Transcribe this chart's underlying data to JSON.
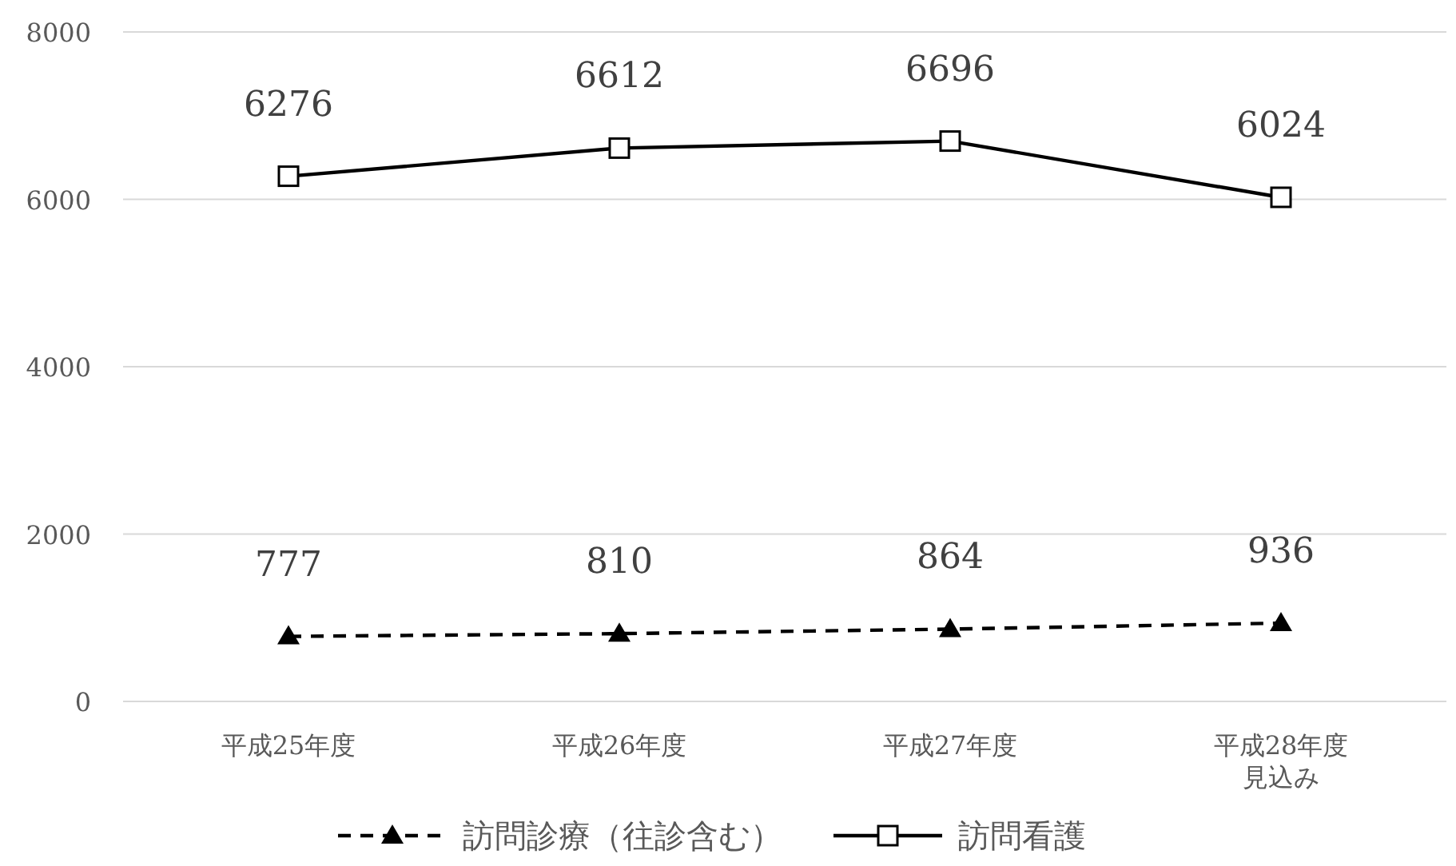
{
  "chart_data": {
    "type": "line",
    "categories": [
      "平成25年度",
      "平成26年度",
      "平成27年度",
      "平成28年度見込み"
    ],
    "series": [
      {
        "name": "訪問診療（往診含む）",
        "color": "#000000",
        "values": [
          777,
          810,
          864,
          936
        ],
        "marker": "triangle",
        "line_style": "dashed"
      },
      {
        "name": "訪問看護",
        "color": "#000000",
        "values": [
          6276,
          6612,
          6696,
          6024
        ],
        "marker": "square",
        "line_style": "solid"
      }
    ],
    "ylim": [
      0,
      8000
    ],
    "yticks": [
      0,
      2000,
      4000,
      6000,
      8000
    ],
    "grid": "y",
    "data_labels": true,
    "legend": "bottom"
  }
}
